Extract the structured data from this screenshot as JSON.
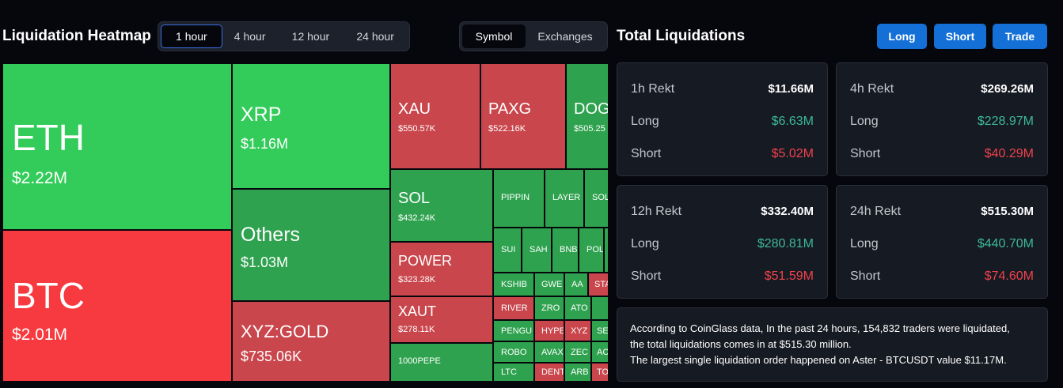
{
  "heatmap": {
    "title": "Liquidation Heatmap",
    "time_options": [
      "1 hour",
      "4 hour",
      "12 hour",
      "24 hour"
    ],
    "active_time": "1 hour",
    "view_options": [
      "Symbol",
      "Exchanges"
    ],
    "active_view": "Symbol",
    "tiles": [
      {
        "name": "ETH",
        "value": "$2.22M",
        "color": "#33cc5a"
      },
      {
        "name": "BTC",
        "value": "$2.01M",
        "color": "#f73a3f"
      },
      {
        "name": "XRP",
        "value": "$1.16M",
        "color": "#33cc5a"
      },
      {
        "name": "Others",
        "value": "$1.03M",
        "color": "#2fa24f"
      },
      {
        "name": "XYZ:GOLD",
        "value": "$735.06K",
        "color": "#c9464c"
      },
      {
        "name": "XAU",
        "value": "$550.57K",
        "color": "#c9464c"
      },
      {
        "name": "PAXG",
        "value": "$522.16K",
        "color": "#c9464c"
      },
      {
        "name": "DOG",
        "value": "$505.25",
        "color": "#2fa24f"
      },
      {
        "name": "SOL",
        "value": "$432.24K",
        "color": "#2fa24f"
      },
      {
        "name": "POWER",
        "value": "$323.28K",
        "color": "#c9464c"
      },
      {
        "name": "XAUT",
        "value": "$278.11K",
        "color": "#c9464c"
      },
      {
        "name": "1000PEPE",
        "value": "",
        "color": "#2fa24f"
      },
      {
        "name": "PIPPIN",
        "value": "",
        "color": "#2fa24f"
      },
      {
        "name": "LAYER",
        "value": "",
        "color": "#2fa24f"
      },
      {
        "name": "SOL",
        "value": "",
        "color": "#2fa24f"
      },
      {
        "name": "SUI",
        "value": "",
        "color": "#2fa24f"
      },
      {
        "name": "SAH",
        "value": "",
        "color": "#2fa24f"
      },
      {
        "name": "BNB",
        "value": "",
        "color": "#2fa24f"
      },
      {
        "name": "POL",
        "value": "",
        "color": "#2fa24f"
      },
      {
        "name": "KSHIB",
        "value": "",
        "color": "#2fa24f"
      },
      {
        "name": "GWE",
        "value": "",
        "color": "#2fa24f"
      },
      {
        "name": "AA",
        "value": "",
        "color": "#2fa24f"
      },
      {
        "name": "STA",
        "value": "",
        "color": "#c9464c"
      },
      {
        "name": "RIVER",
        "value": "",
        "color": "#c9464c"
      },
      {
        "name": "ZRO",
        "value": "",
        "color": "#2fa24f"
      },
      {
        "name": "ATO",
        "value": "",
        "color": "#2fa24f"
      },
      {
        "name": "PENGU",
        "value": "",
        "color": "#2fa24f"
      },
      {
        "name": "HYPE",
        "value": "",
        "color": "#c9464c"
      },
      {
        "name": "XYZ",
        "value": "",
        "color": "#c9464c"
      },
      {
        "name": "SE",
        "value": "",
        "color": "#2fa24f"
      },
      {
        "name": "ROBO",
        "value": "",
        "color": "#2fa24f"
      },
      {
        "name": "AVAX",
        "value": "",
        "color": "#2fa24f"
      },
      {
        "name": "ZEC",
        "value": "",
        "color": "#2fa24f"
      },
      {
        "name": "AC",
        "value": "",
        "color": "#2fa24f"
      },
      {
        "name": "LTC",
        "value": "",
        "color": "#2fa24f"
      },
      {
        "name": "DENT",
        "value": "",
        "color": "#c9464c"
      },
      {
        "name": "ARB",
        "value": "",
        "color": "#2fa24f"
      },
      {
        "name": "TO",
        "value": "",
        "color": "#c9464c"
      }
    ]
  },
  "total": {
    "title": "Total Liquidations",
    "buttons": [
      "Long",
      "Short",
      "Trade"
    ],
    "cards": [
      {
        "label": "1h Rekt",
        "total": "$11.66M",
        "long_label": "Long",
        "long": "$6.63M",
        "short_label": "Short",
        "short": "$5.02M"
      },
      {
        "label": "4h Rekt",
        "total": "$269.26M",
        "long_label": "Long",
        "long": "$228.97M",
        "short_label": "Short",
        "short": "$40.29M"
      },
      {
        "label": "12h Rekt",
        "total": "$332.40M",
        "long_label": "Long",
        "long": "$280.81M",
        "short_label": "Short",
        "short": "$51.59M"
      },
      {
        "label": "24h Rekt",
        "total": "$515.30M",
        "long_label": "Long",
        "long": "$440.70M",
        "short_label": "Short",
        "short": "$74.60M"
      }
    ],
    "summary_lines": [
      "According to CoinGlass data, In the past 24 hours, 154,832 traders were liquidated,",
      "the total liquidations comes in at $515.30 million.",
      "The largest single liquidation order happened on Aster - BTCUSDT value $11.17M."
    ],
    "colors": {
      "positive": "#3db89a",
      "negative": "#f0424c",
      "button": "#1470d6"
    }
  }
}
